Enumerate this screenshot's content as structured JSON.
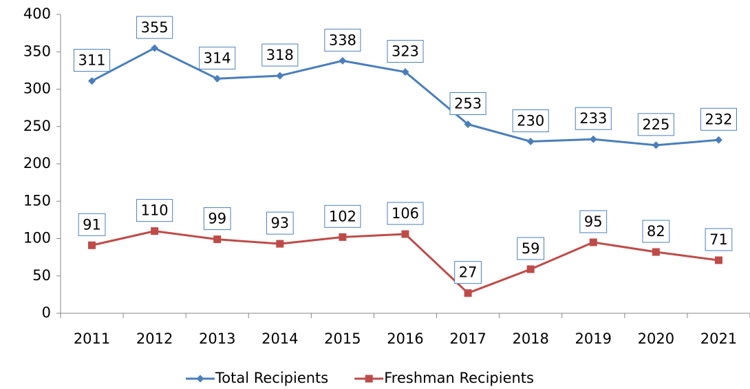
{
  "chart_data": {
    "type": "line",
    "categories": [
      "2011",
      "2012",
      "2013",
      "2014",
      "2015",
      "2016",
      "2017",
      "2018",
      "2019",
      "2020",
      "2021"
    ],
    "series": [
      {
        "name": "Total Recipients",
        "color": "#4a7ebb",
        "marker": "diamond",
        "values": [
          311,
          355,
          314,
          318,
          338,
          323,
          253,
          230,
          233,
          225,
          232
        ]
      },
      {
        "name": "Freshman Recipients",
        "color": "#be4b48",
        "marker": "square",
        "values": [
          91,
          110,
          99,
          93,
          102,
          106,
          27,
          59,
          95,
          82,
          71
        ]
      }
    ],
    "ylim": [
      0,
      400
    ],
    "yticks": [
      0,
      50,
      100,
      150,
      200,
      250,
      300,
      350,
      400
    ],
    "grid": false,
    "legend": "bottom"
  }
}
